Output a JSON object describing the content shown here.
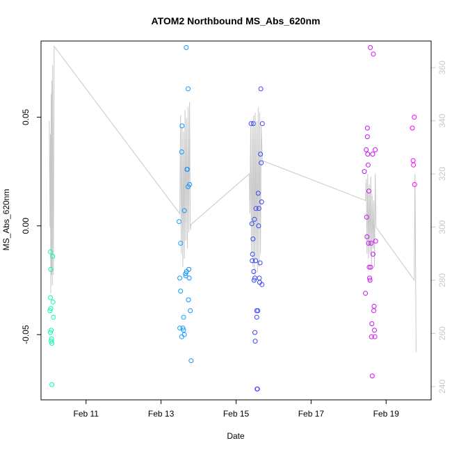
{
  "chart_data": {
    "type": "scatter",
    "title": "ATOM2 Northbound MS_Abs_620nm",
    "xlabel": "Date",
    "ylabel": "MS_Abs_620nm",
    "x_ticks": [
      {
        "value": 11,
        "label": "Feb 11"
      },
      {
        "value": 13,
        "label": "Feb 13"
      },
      {
        "value": 15,
        "label": "Feb 15"
      },
      {
        "value": 17,
        "label": "Feb 17"
      },
      {
        "value": 19,
        "label": "Feb 19"
      }
    ],
    "xlim": [
      9.8,
      20.2
    ],
    "ylim": [
      -0.08,
      0.085
    ],
    "y_ticks": [
      -0.05,
      0.0,
      0.05
    ],
    "y_tick_labels": [
      "-0.05",
      "0.00",
      "0.05"
    ],
    "y2_lim": [
      235,
      370
    ],
    "y2_ticks": [
      240,
      260,
      280,
      300,
      320,
      340,
      360
    ],
    "y2_tick_labels": [
      "240",
      "260",
      "280",
      "300",
      "320",
      "340",
      "360"
    ],
    "grid": false,
    "legend": "none",
    "colors": {
      "frame": "#000000",
      "line": "#c8c8c8",
      "secondary_axis": "#c8c8c8",
      "gradient": [
        "#00ffa6",
        "#00d8ff",
        "#1a4fff",
        "#8a2be2",
        "#ff00ff"
      ]
    },
    "series": [
      {
        "kind": "points",
        "points": [
          [
            10.05,
            -0.012
          ],
          [
            10.06,
            -0.02
          ],
          [
            10.05,
            -0.033
          ],
          [
            10.06,
            -0.038
          ],
          [
            10.04,
            -0.039
          ],
          [
            10.07,
            -0.048
          ],
          [
            10.05,
            -0.049
          ],
          [
            10.08,
            -0.052
          ],
          [
            10.07,
            -0.053
          ],
          [
            10.09,
            -0.054
          ],
          [
            10.09,
            -0.073
          ],
          [
            10.11,
            -0.014
          ],
          [
            10.12,
            -0.035
          ],
          [
            10.13,
            -0.042
          ],
          [
            13.48,
            0.002
          ],
          [
            13.52,
            -0.008
          ],
          [
            13.55,
            0.034
          ],
          [
            13.56,
            0.046
          ],
          [
            13.5,
            -0.024
          ],
          [
            13.52,
            -0.03
          ],
          [
            13.5,
            -0.047
          ],
          [
            13.55,
            -0.051
          ],
          [
            13.58,
            -0.047
          ],
          [
            13.6,
            -0.048
          ],
          [
            13.6,
            -0.042
          ],
          [
            13.62,
            -0.05
          ],
          [
            13.62,
            0.007
          ],
          [
            13.65,
            -0.022
          ],
          [
            13.66,
            -0.023
          ],
          [
            13.68,
            -0.021
          ],
          [
            13.67,
            0.082
          ],
          [
            13.69,
            0.026
          ],
          [
            13.7,
            0.026
          ],
          [
            13.72,
            0.063
          ],
          [
            13.72,
            0.018
          ],
          [
            13.74,
            -0.02
          ],
          [
            13.75,
            -0.024
          ],
          [
            13.73,
            -0.034
          ],
          [
            13.76,
            0.019
          ],
          [
            13.78,
            -0.039
          ],
          [
            13.8,
            -0.062
          ],
          [
            15.4,
            0.047
          ],
          [
            15.42,
            0.001
          ],
          [
            15.45,
            -0.006
          ],
          [
            15.44,
            -0.013
          ],
          [
            15.43,
            -0.016
          ],
          [
            15.46,
            0.047
          ],
          [
            15.47,
            -0.021
          ],
          [
            15.48,
            -0.025
          ],
          [
            15.49,
            0.003
          ],
          [
            15.5,
            -0.024
          ],
          [
            15.5,
            -0.049
          ],
          [
            15.51,
            -0.053
          ],
          [
            15.52,
            -0.016
          ],
          [
            15.53,
            0.008
          ],
          [
            15.55,
            -0.039
          ],
          [
            15.55,
            -0.042
          ],
          [
            15.56,
            -0.075
          ],
          [
            15.57,
            -0.075
          ],
          [
            15.58,
            -0.039
          ],
          [
            15.59,
            0.015
          ],
          [
            15.6,
            0.0
          ],
          [
            15.61,
            0.008
          ],
          [
            15.62,
            -0.024
          ],
          [
            15.63,
            -0.026
          ],
          [
            15.64,
            -0.017
          ],
          [
            15.65,
            0.033
          ],
          [
            15.66,
            0.063
          ],
          [
            15.67,
            0.029
          ],
          [
            15.68,
            0.011
          ],
          [
            15.69,
            -0.027
          ],
          [
            15.7,
            0.047
          ],
          [
            18.42,
            0.025
          ],
          [
            18.45,
            -0.031
          ],
          [
            18.47,
            0.035
          ],
          [
            18.48,
            0.004
          ],
          [
            18.49,
            -0.005
          ],
          [
            18.5,
            0.045
          ],
          [
            18.5,
            0.041
          ],
          [
            18.51,
            0.033
          ],
          [
            18.52,
            0.028
          ],
          [
            18.53,
            -0.008
          ],
          [
            18.54,
            0.016
          ],
          [
            18.55,
            -0.019
          ],
          [
            18.56,
            -0.024
          ],
          [
            18.57,
            -0.025
          ],
          [
            18.58,
            0.082
          ],
          [
            18.59,
            -0.019
          ],
          [
            18.6,
            -0.008
          ],
          [
            18.61,
            -0.051
          ],
          [
            18.62,
            -0.045
          ],
          [
            18.63,
            -0.069
          ],
          [
            18.64,
            0.033
          ],
          [
            18.65,
            -0.013
          ],
          [
            18.66,
            0.079
          ],
          [
            18.67,
            -0.039
          ],
          [
            18.68,
            -0.037
          ],
          [
            18.69,
            -0.048
          ],
          [
            18.7,
            -0.051
          ],
          [
            18.71,
            0.035
          ],
          [
            18.72,
            -0.007
          ],
          [
            19.7,
            0.045
          ],
          [
            19.72,
            0.03
          ],
          [
            19.73,
            0.028
          ],
          [
            19.75,
            0.05
          ],
          [
            19.76,
            0.019
          ]
        ]
      },
      {
        "kind": "line",
        "axis": "secondary",
        "points": [
          [
            10.02,
            340
          ],
          [
            10.04,
            300
          ],
          [
            10.05,
            335
          ],
          [
            10.06,
            275
          ],
          [
            10.07,
            350
          ],
          [
            10.08,
            282
          ],
          [
            10.09,
            355
          ],
          [
            10.1,
            278
          ],
          [
            10.11,
            361
          ],
          [
            10.13,
            282
          ],
          [
            10.15,
            368
          ],
          [
            13.5,
            305
          ],
          [
            13.52,
            342
          ],
          [
            13.54,
            290
          ],
          [
            13.56,
            338
          ],
          [
            13.58,
            285
          ],
          [
            13.6,
            336
          ],
          [
            13.62,
            288
          ],
          [
            13.64,
            344
          ],
          [
            13.66,
            295
          ],
          [
            13.68,
            341
          ],
          [
            13.7,
            292
          ],
          [
            13.72,
            345
          ],
          [
            13.74,
            298
          ],
          [
            13.76,
            347
          ],
          [
            13.78,
            299
          ],
          [
            13.8,
            301
          ],
          [
            15.35,
            320
          ],
          [
            15.37,
            305
          ],
          [
            15.39,
            338
          ],
          [
            15.41,
            290
          ],
          [
            15.43,
            340
          ],
          [
            15.45,
            285
          ],
          [
            15.47,
            342
          ],
          [
            15.49,
            282
          ],
          [
            15.51,
            343
          ],
          [
            15.53,
            288
          ],
          [
            15.55,
            340
          ],
          [
            15.57,
            283
          ],
          [
            15.59,
            345
          ],
          [
            15.61,
            285
          ],
          [
            15.63,
            343
          ],
          [
            15.65,
            290
          ],
          [
            15.67,
            338
          ],
          [
            15.7,
            325
          ],
          [
            18.45,
            310
          ],
          [
            18.47,
            318
          ],
          [
            18.49,
            290
          ],
          [
            18.51,
            320
          ],
          [
            18.53,
            288
          ],
          [
            18.55,
            316
          ],
          [
            18.57,
            290
          ],
          [
            18.59,
            319
          ],
          [
            18.61,
            286
          ],
          [
            18.63,
            312
          ],
          [
            18.65,
            292
          ],
          [
            18.67,
            310
          ],
          [
            18.69,
            285
          ],
          [
            18.71,
            320
          ],
          [
            18.73,
            300
          ],
          [
            19.75,
            280
          ],
          [
            19.77,
            320
          ],
          [
            19.8,
            253
          ]
        ]
      }
    ]
  }
}
